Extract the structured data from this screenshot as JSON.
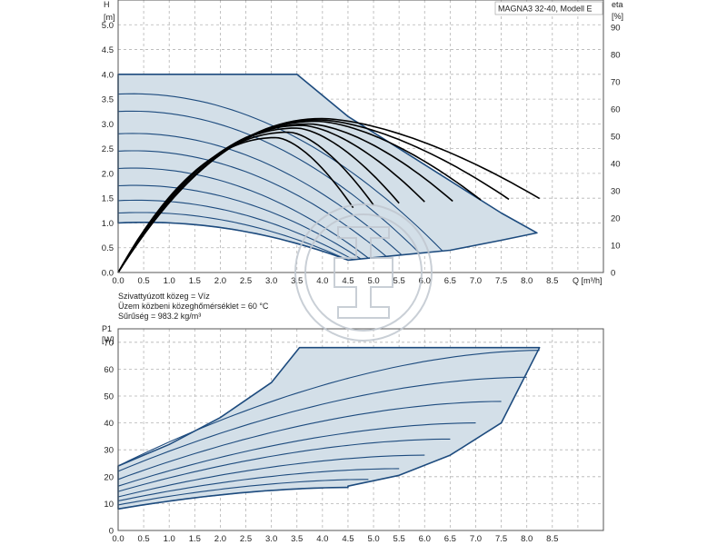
{
  "chart_data": [
    {
      "type": "line",
      "title": "MAGNA3 32-40, Modell E",
      "ylabel": "H",
      "yunit": "[m]",
      "y2label": "eta",
      "y2unit": "[%]",
      "xlabel": "Q [m³/h]",
      "xlim": [
        0,
        9.5
      ],
      "ylim": [
        0,
        5.5
      ],
      "y2lim": [
        0,
        100
      ],
      "x_ticks": [
        "0.0",
        "0.5",
        "1.0",
        "1.5",
        "2.0",
        "2.5",
        "3.0",
        "3.5",
        "4.0",
        "4.5",
        "5.0",
        "5.5",
        "6.0",
        "6.5",
        "7.0",
        "7.5",
        "8.0",
        "8.5"
      ],
      "y_ticks": [
        "0.0",
        "0.5",
        "1.0",
        "1.5",
        "2.0",
        "2.5",
        "3.0",
        "3.5",
        "4.0",
        "4.5",
        "5.0"
      ],
      "y2_ticks": [
        "0",
        "10",
        "20",
        "30",
        "40",
        "50",
        "60",
        "70",
        "80",
        "90"
      ],
      "max_curve": [
        [
          0,
          4.0
        ],
        [
          3.5,
          4.0
        ],
        [
          4.5,
          3.15
        ],
        [
          5.5,
          2.5
        ],
        [
          6.5,
          1.85
        ],
        [
          7.5,
          1.2
        ],
        [
          8.2,
          0.8
        ]
      ],
      "min_curve": [
        [
          4.5,
          0.25
        ],
        [
          5.5,
          0.35
        ],
        [
          6.5,
          0.45
        ],
        [
          7.5,
          0.65
        ],
        [
          8.2,
          0.8
        ]
      ],
      "head_curves": [
        {
          "h0": 3.6,
          "q_end": 6.35
        },
        {
          "h0": 3.25,
          "q_end": 5.9
        },
        {
          "h0": 2.8,
          "q_end": 5.55
        },
        {
          "h0": 2.45,
          "q_end": 5.25
        },
        {
          "h0": 2.1,
          "q_end": 4.9
        },
        {
          "h0": 1.75,
          "q_end": 4.75
        },
        {
          "h0": 1.45,
          "q_end": 4.6
        },
        {
          "h0": 1.2,
          "q_end": 4.5
        },
        {
          "h0": 1.0,
          "q_end": 4.5
        }
      ],
      "eta_curves": [
        {
          "q_peak": 4.0,
          "eta_peak": 56.5,
          "q_end": 8.25
        },
        {
          "q_peak": 3.95,
          "eta_peak": 56.0,
          "q_end": 7.65
        },
        {
          "q_peak": 3.9,
          "eta_peak": 55.5,
          "q_end": 7.1
        },
        {
          "q_peak": 3.75,
          "eta_peak": 54.5,
          "q_end": 6.55
        },
        {
          "q_peak": 3.6,
          "eta_peak": 54.0,
          "q_end": 6.0
        },
        {
          "q_peak": 3.5,
          "eta_peak": 53.0,
          "q_end": 5.5
        },
        {
          "q_peak": 3.35,
          "eta_peak": 51.5,
          "q_end": 5.0
        },
        {
          "q_peak": 3.1,
          "eta_peak": 49.5,
          "q_end": 4.6
        }
      ]
    },
    {
      "type": "line",
      "ylabel": "P1",
      "yunit": "[W]",
      "xlim": [
        0,
        9.5
      ],
      "ylim": [
        0,
        75
      ],
      "y_ticks": [
        "0",
        "10",
        "20",
        "30",
        "40",
        "50",
        "60",
        "70"
      ],
      "max_curve": [
        [
          0,
          24.0
        ],
        [
          1.0,
          32.0
        ],
        [
          2.0,
          42.0
        ],
        [
          3.0,
          55.0
        ],
        [
          3.55,
          68.0
        ],
        [
          8.25,
          68.0
        ]
      ],
      "min_curve": [
        [
          4.5,
          16.5
        ],
        [
          5.5,
          20.5
        ],
        [
          6.5,
          28.0
        ],
        [
          7.5,
          40.0
        ],
        [
          8.25,
          68.0
        ]
      ],
      "power_curves": [
        {
          "p0": 8.0,
          "p_end": 16.0,
          "q_end": 4.5
        },
        {
          "p0": 9.5,
          "p_end": 19.0,
          "q_end": 4.9
        },
        {
          "p0": 11.0,
          "p_end": 23.0,
          "q_end": 5.5
        },
        {
          "p0": 12.5,
          "p_end": 28.0,
          "q_end": 6.0
        },
        {
          "p0": 14.5,
          "p_end": 34.0,
          "q_end": 6.5
        },
        {
          "p0": 16.5,
          "p_end": 40.0,
          "q_end": 7.0
        },
        {
          "p0": 19.0,
          "p_end": 48.0,
          "q_end": 7.5
        },
        {
          "p0": 22.0,
          "p_end": 57.0,
          "q_end": 8.0
        },
        {
          "p0": 24.0,
          "p_end": 67.0,
          "q_end": 8.25
        }
      ]
    }
  ],
  "notes": {
    "medium": "Szivattyúzott közeg = Víz",
    "temperature": "Üzem közbeni közeghőmérséklet = 60 °C",
    "density": "Sűrűség = 983.2 kg/m³"
  }
}
